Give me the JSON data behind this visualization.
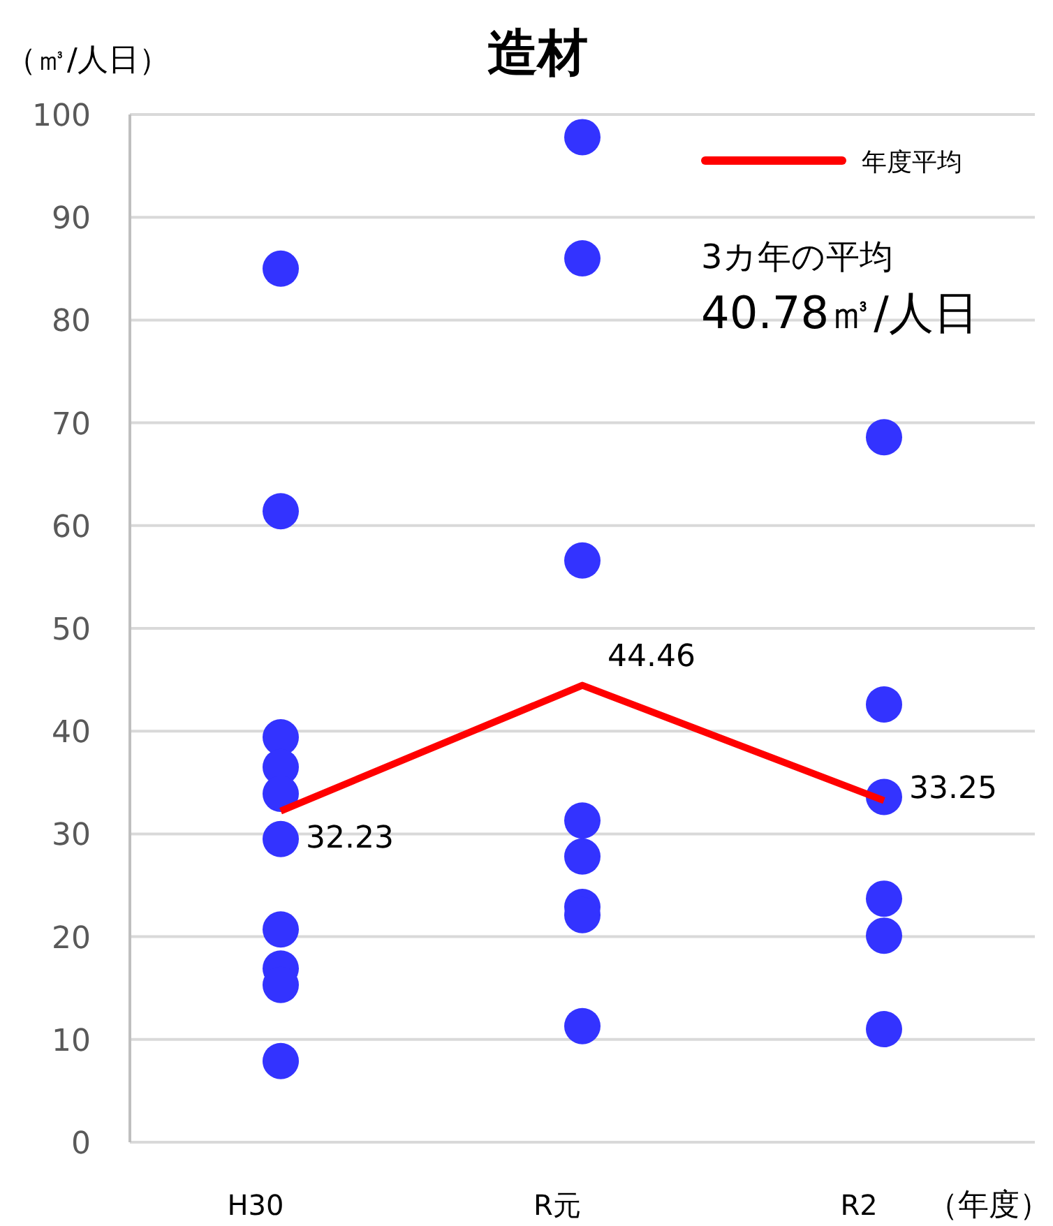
{
  "chart_data": {
    "type": "scatter",
    "title": "造材",
    "ylabel": "（㎥/人日）",
    "xlabel": "（年度）",
    "categories": [
      "H30",
      "R元",
      "R2"
    ],
    "ylim": [
      0,
      100
    ],
    "yticks": [
      0,
      10,
      20,
      30,
      40,
      50,
      60,
      70,
      80,
      90,
      100
    ],
    "grid": "y",
    "legend": "top right",
    "annotations": [
      "3カ年の平均",
      "40.78㎥/人日"
    ],
    "series": [
      {
        "color": "#3333ff",
        "marker": "circle",
        "x": [
          "H30",
          "H30",
          "H30",
          "H30",
          "H30",
          "H30",
          "H30",
          "H30",
          "H30",
          "H30",
          "R元",
          "R元",
          "R元",
          "R元",
          "R元",
          "R元",
          "R元",
          "R元",
          "R2",
          "R2",
          "R2",
          "R2",
          "R2",
          "R2"
        ],
        "values": [
          85.0,
          61.4,
          39.4,
          36.5,
          33.9,
          29.5,
          20.7,
          16.9,
          15.3,
          7.9,
          97.8,
          86.0,
          56.6,
          31.3,
          27.8,
          22.9,
          22.1,
          11.3,
          68.6,
          42.6,
          33.6,
          23.7,
          20.1,
          11.0
        ]
      },
      {
        "type": "line",
        "name": "年度平均",
        "color": "#ff0000",
        "marker": "none",
        "values": [
          32.23,
          44.46,
          33.25
        ],
        "value_labels": [
          "32.23",
          "44.46",
          "33.25"
        ]
      }
    ]
  }
}
